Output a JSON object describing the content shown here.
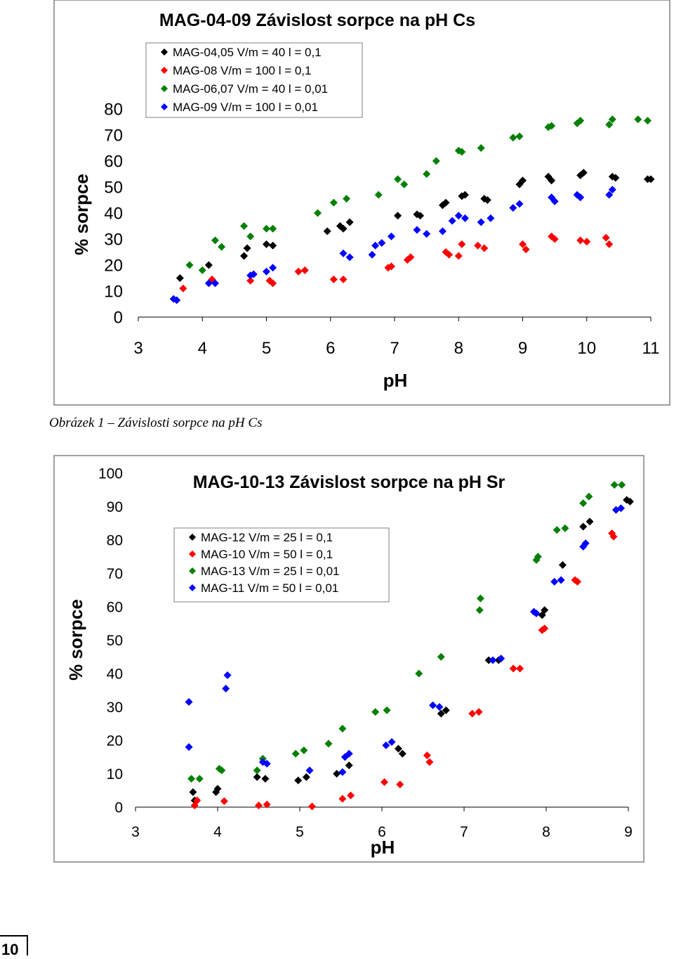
{
  "caption": "Obrázek 1 – Závislosti sorpce na pH Cs",
  "page_number": "10",
  "colors": {
    "black": "#000000",
    "red": "#ff0000",
    "green": "#008000",
    "blue": "#0000ff"
  },
  "chart_data": [
    {
      "type": "scatter",
      "title": "MAG-04-09 Závislost sorpce na pH Cs",
      "xlabel": "pH",
      "ylabel": "% sorpce",
      "xlim": [
        3,
        11
      ],
      "ylim": [
        0,
        80
      ],
      "xticks": [
        "3",
        "4",
        "5",
        "6",
        "7",
        "8",
        "9",
        "10",
        "11"
      ],
      "yticks": [
        "0",
        "10",
        "20",
        "30",
        "40",
        "50",
        "60",
        "70",
        "80"
      ],
      "legend_position": "top-left",
      "series": [
        {
          "name": "MAG-04,05 V/m = 40 l = 0,1",
          "color": "#000000",
          "points": [
            [
              3.65,
              15
            ],
            [
              4.1,
              20
            ],
            [
              4.65,
              23.5
            ],
            [
              4.7,
              26.5
            ],
            [
              5.0,
              28
            ],
            [
              5.1,
              27.5
            ],
            [
              5.95,
              33
            ],
            [
              6.15,
              35
            ],
            [
              6.2,
              34
            ],
            [
              6.3,
              36.5
            ],
            [
              7.05,
              39
            ],
            [
              7.35,
              39.5
            ],
            [
              7.4,
              39
            ],
            [
              7.75,
              43
            ],
            [
              7.8,
              44
            ],
            [
              8.05,
              46.5
            ],
            [
              8.1,
              47
            ],
            [
              8.4,
              45.5
            ],
            [
              8.45,
              45
            ],
            [
              8.95,
              51
            ],
            [
              9.0,
              52.5
            ],
            [
              9.4,
              54
            ],
            [
              9.45,
              52.5
            ],
            [
              9.9,
              54.5
            ],
            [
              9.95,
              55.5
            ],
            [
              10.4,
              54
            ],
            [
              10.45,
              53.5
            ],
            [
              10.95,
              53
            ],
            [
              11.0,
              53
            ]
          ]
        },
        {
          "name": "MAG-08 V/m = 100 l = 0,1",
          "color": "#ff0000",
          "points": [
            [
              3.7,
              11
            ],
            [
              4.15,
              14.5
            ],
            [
              4.75,
              14
            ],
            [
              5.05,
              14
            ],
            [
              5.1,
              13
            ],
            [
              5.5,
              17.5
            ],
            [
              5.6,
              18
            ],
            [
              6.05,
              14.5
            ],
            [
              6.2,
              14.5
            ],
            [
              6.9,
              19
            ],
            [
              6.95,
              19.5
            ],
            [
              7.2,
              22
            ],
            [
              7.25,
              23
            ],
            [
              7.8,
              25
            ],
            [
              7.85,
              24
            ],
            [
              8.0,
              23.5
            ],
            [
              8.05,
              28
            ],
            [
              8.3,
              27.5
            ],
            [
              8.4,
              26.5
            ],
            [
              9.0,
              28
            ],
            [
              9.05,
              26
            ],
            [
              9.45,
              31
            ],
            [
              9.5,
              30
            ],
            [
              9.9,
              29.5
            ],
            [
              10.0,
              29
            ],
            [
              10.3,
              30.5
            ],
            [
              10.35,
              28
            ]
          ]
        },
        {
          "name": "MAG-06,07 V/m = 40 l = 0,01",
          "color": "#008000",
          "points": [
            [
              3.8,
              20
            ],
            [
              4.0,
              18
            ],
            [
              4.2,
              29.5
            ],
            [
              4.3,
              27
            ],
            [
              4.65,
              35
            ],
            [
              4.75,
              31
            ],
            [
              5.0,
              34
            ],
            [
              5.1,
              34
            ],
            [
              5.8,
              40
            ],
            [
              6.05,
              44
            ],
            [
              6.25,
              45.5
            ],
            [
              6.75,
              47
            ],
            [
              7.05,
              53
            ],
            [
              7.15,
              51
            ],
            [
              7.5,
              55
            ],
            [
              7.65,
              60
            ],
            [
              8.0,
              64
            ],
            [
              8.05,
              63.5
            ],
            [
              8.35,
              65
            ],
            [
              8.85,
              69
            ],
            [
              8.95,
              69.5
            ],
            [
              9.4,
              73
            ],
            [
              9.45,
              73.5
            ],
            [
              9.85,
              74.5
            ],
            [
              9.9,
              75.5
            ],
            [
              10.35,
              74
            ],
            [
              10.4,
              76
            ],
            [
              10.8,
              76
            ],
            [
              10.95,
              75.5
            ]
          ]
        },
        {
          "name": "MAG-09 V/m = 100 l = 0,01",
          "color": "#0000ff",
          "points": [
            [
              3.55,
              7
            ],
            [
              3.6,
              6.5
            ],
            [
              4.1,
              13
            ],
            [
              4.2,
              13
            ],
            [
              4.75,
              16
            ],
            [
              4.8,
              16.5
            ],
            [
              5.0,
              17.5
            ],
            [
              5.1,
              19
            ],
            [
              6.2,
              24.5
            ],
            [
              6.3,
              23
            ],
            [
              6.65,
              24
            ],
            [
              6.7,
              27.5
            ],
            [
              6.8,
              28.5
            ],
            [
              6.95,
              31
            ],
            [
              7.35,
              33.5
            ],
            [
              7.5,
              32
            ],
            [
              7.75,
              33
            ],
            [
              7.9,
              37
            ],
            [
              8.0,
              39
            ],
            [
              8.1,
              38
            ],
            [
              8.35,
              36.5
            ],
            [
              8.5,
              38
            ],
            [
              8.85,
              42
            ],
            [
              8.95,
              43.5
            ],
            [
              9.45,
              46
            ],
            [
              9.5,
              44.5
            ],
            [
              9.85,
              47
            ],
            [
              9.9,
              46
            ],
            [
              10.35,
              47
            ],
            [
              10.4,
              49
            ]
          ]
        }
      ]
    },
    {
      "type": "scatter",
      "title": "MAG-10-13 Závislost sorpce na pH Sr",
      "xlabel": "pH",
      "ylabel": "% sorpce",
      "xlim": [
        3,
        9
      ],
      "ylim": [
        0,
        100
      ],
      "xticks": [
        "3",
        "4",
        "5",
        "6",
        "7",
        "8",
        "9"
      ],
      "yticks": [
        "0",
        "10",
        "20",
        "30",
        "40",
        "50",
        "60",
        "70",
        "80",
        "90",
        "100"
      ],
      "legend_position": "upper-middle",
      "series": [
        {
          "name": "MAG-12 V/m = 25 l = 0,1",
          "color": "#000000",
          "points": [
            [
              3.7,
              4.5
            ],
            [
              3.72,
              2
            ],
            [
              3.98,
              4.5
            ],
            [
              4.0,
              5.5
            ],
            [
              4.48,
              9
            ],
            [
              4.58,
              8.5
            ],
            [
              4.98,
              8
            ],
            [
              5.08,
              9
            ],
            [
              5.45,
              10
            ],
            [
              5.6,
              12.5
            ],
            [
              6.2,
              17.5
            ],
            [
              6.25,
              16
            ],
            [
              6.72,
              28
            ],
            [
              6.78,
              29
            ],
            [
              7.3,
              44
            ],
            [
              7.42,
              44
            ],
            [
              7.95,
              57.5
            ],
            [
              7.98,
              59
            ],
            [
              8.2,
              72.5
            ],
            [
              8.45,
              84
            ],
            [
              8.53,
              85.5
            ],
            [
              8.98,
              92
            ],
            [
              9.02,
              91.5
            ]
          ]
        },
        {
          "name": "MAG-10 V/m = 50 l = 0,1",
          "color": "#ff0000",
          "points": [
            [
              3.72,
              0.5
            ],
            [
              3.75,
              2
            ],
            [
              4.08,
              1.8
            ],
            [
              4.5,
              0.5
            ],
            [
              4.6,
              0.8
            ],
            [
              5.15,
              0.2
            ],
            [
              5.52,
              2.5
            ],
            [
              5.62,
              3.5
            ],
            [
              6.03,
              7.5
            ],
            [
              6.22,
              6.8
            ],
            [
              6.55,
              15.5
            ],
            [
              6.58,
              13.5
            ],
            [
              7.1,
              28
            ],
            [
              7.18,
              28.5
            ],
            [
              7.6,
              41.5
            ],
            [
              7.68,
              41.5
            ],
            [
              7.95,
              53
            ],
            [
              7.98,
              53.5
            ],
            [
              8.35,
              68
            ],
            [
              8.38,
              67.5
            ],
            [
              8.8,
              82
            ],
            [
              8.82,
              81
            ]
          ]
        },
        {
          "name": "MAG-13 V/m = 25 l = 0,01",
          "color": "#008000",
          "points": [
            [
              3.68,
              8.5
            ],
            [
              3.78,
              8.5
            ],
            [
              4.02,
              11.5
            ],
            [
              4.05,
              11
            ],
            [
              4.48,
              11
            ],
            [
              4.55,
              14.5
            ],
            [
              4.95,
              16
            ],
            [
              5.05,
              17
            ],
            [
              5.35,
              19
            ],
            [
              5.52,
              23.5
            ],
            [
              5.92,
              28.5
            ],
            [
              6.06,
              29
            ],
            [
              6.45,
              40
            ],
            [
              6.72,
              45
            ],
            [
              7.2,
              62.5
            ],
            [
              7.19,
              59
            ],
            [
              7.88,
              74
            ],
            [
              7.9,
              75
            ],
            [
              8.13,
              83
            ],
            [
              8.23,
              83.5
            ],
            [
              8.45,
              91
            ],
            [
              8.52,
              93
            ],
            [
              8.83,
              96.5
            ],
            [
              8.92,
              96.5
            ]
          ]
        },
        {
          "name": "MAG-11 V/m = 50 l = 0,01",
          "color": "#0000ff",
          "points": [
            [
              3.65,
              31.5
            ],
            [
              3.65,
              18
            ],
            [
              4.1,
              35.5
            ],
            [
              4.12,
              39.5
            ],
            [
              4.55,
              13.5
            ],
            [
              4.6,
              13
            ],
            [
              5.12,
              11
            ],
            [
              5.52,
              10.5
            ],
            [
              5.55,
              15
            ],
            [
              5.6,
              16
            ],
            [
              6.05,
              18.5
            ],
            [
              6.12,
              19.5
            ],
            [
              6.62,
              30.5
            ],
            [
              6.7,
              30
            ],
            [
              7.35,
              44
            ],
            [
              7.45,
              44.5
            ],
            [
              7.85,
              58.5
            ],
            [
              7.88,
              58
            ],
            [
              8.1,
              67.5
            ],
            [
              8.18,
              68
            ],
            [
              8.45,
              78
            ],
            [
              8.48,
              79
            ],
            [
              8.85,
              89
            ],
            [
              8.91,
              89.5
            ]
          ]
        }
      ]
    }
  ]
}
